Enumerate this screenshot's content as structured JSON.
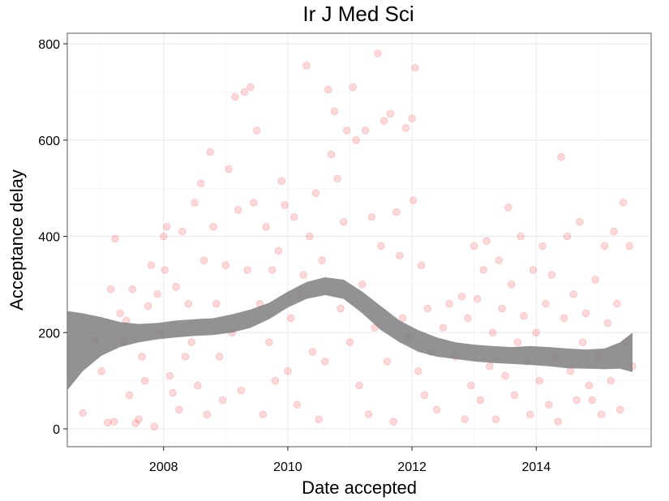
{
  "chart_data": {
    "type": "scatter",
    "title": "Ir J Med Sci",
    "xlabel": "Date accepted",
    "ylabel": "Acceptance delay",
    "xlim": [
      2006.45,
      2015.85
    ],
    "ylim": [
      -37,
      822
    ],
    "x_ticks": [
      2008,
      2010,
      2012,
      2014
    ],
    "y_ticks": [
      0,
      200,
      400,
      600,
      800
    ],
    "grid": true,
    "point_color": "#ff0000",
    "point_alpha": 0.15,
    "band_color": "#7f7f7f",
    "band_alpha": 0.85,
    "series": [
      {
        "values": [
          [
            2006.7,
            33
          ],
          [
            2006.9,
            185
          ],
          [
            2007.0,
            120
          ],
          [
            2007.1,
            13
          ],
          [
            2007.15,
            290
          ],
          [
            2007.2,
            15
          ],
          [
            2007.22,
            395
          ],
          [
            2007.3,
            240
          ],
          [
            2007.35,
            182
          ],
          [
            2007.4,
            225
          ],
          [
            2007.45,
            70
          ],
          [
            2007.5,
            290
          ],
          [
            2007.55,
            12
          ],
          [
            2007.6,
            20
          ],
          [
            2007.65,
            150
          ],
          [
            2007.7,
            100
          ],
          [
            2007.75,
            255
          ],
          [
            2007.8,
            340
          ],
          [
            2007.85,
            5
          ],
          [
            2007.9,
            280
          ],
          [
            2007.95,
            200
          ],
          [
            2008.0,
            400
          ],
          [
            2008.02,
            330
          ],
          [
            2008.05,
            420
          ],
          [
            2008.1,
            110
          ],
          [
            2008.15,
            75
          ],
          [
            2008.2,
            295
          ],
          [
            2008.25,
            40
          ],
          [
            2008.3,
            410
          ],
          [
            2008.35,
            150
          ],
          [
            2008.4,
            260
          ],
          [
            2008.45,
            180
          ],
          [
            2008.5,
            470
          ],
          [
            2008.55,
            90
          ],
          [
            2008.6,
            510
          ],
          [
            2008.65,
            350
          ],
          [
            2008.7,
            30
          ],
          [
            2008.75,
            575
          ],
          [
            2008.8,
            420
          ],
          [
            2008.85,
            260
          ],
          [
            2008.9,
            150
          ],
          [
            2008.95,
            60
          ],
          [
            2009.0,
            340
          ],
          [
            2009.05,
            540
          ],
          [
            2009.1,
            200
          ],
          [
            2009.15,
            690
          ],
          [
            2009.2,
            455
          ],
          [
            2009.25,
            80
          ],
          [
            2009.3,
            700
          ],
          [
            2009.35,
            330
          ],
          [
            2009.4,
            710
          ],
          [
            2009.45,
            470
          ],
          [
            2009.5,
            620
          ],
          [
            2009.55,
            260
          ],
          [
            2009.6,
            30
          ],
          [
            2009.65,
            420
          ],
          [
            2009.7,
            180
          ],
          [
            2009.75,
            330
          ],
          [
            2009.8,
            100
          ],
          [
            2009.85,
            370
          ],
          [
            2009.9,
            515
          ],
          [
            2009.95,
            465
          ],
          [
            2010.0,
            120
          ],
          [
            2010.05,
            230
          ],
          [
            2010.1,
            440
          ],
          [
            2010.15,
            50
          ],
          [
            2010.2,
            280
          ],
          [
            2010.25,
            320
          ],
          [
            2010.3,
            755
          ],
          [
            2010.35,
            400
          ],
          [
            2010.4,
            160
          ],
          [
            2010.45,
            490
          ],
          [
            2010.5,
            20
          ],
          [
            2010.55,
            350
          ],
          [
            2010.6,
            140
          ],
          [
            2010.65,
            705
          ],
          [
            2010.7,
            570
          ],
          [
            2010.75,
            660
          ],
          [
            2010.8,
            520
          ],
          [
            2010.85,
            250
          ],
          [
            2010.9,
            430
          ],
          [
            2010.95,
            620
          ],
          [
            2011.0,
            180
          ],
          [
            2011.05,
            710
          ],
          [
            2011.1,
            600
          ],
          [
            2011.15,
            90
          ],
          [
            2011.2,
            300
          ],
          [
            2011.25,
            620
          ],
          [
            2011.3,
            30
          ],
          [
            2011.35,
            440
          ],
          [
            2011.4,
            210
          ],
          [
            2011.45,
            780
          ],
          [
            2011.5,
            380
          ],
          [
            2011.55,
            640
          ],
          [
            2011.6,
            140
          ],
          [
            2011.65,
            655
          ],
          [
            2011.7,
            15
          ],
          [
            2011.75,
            450
          ],
          [
            2011.8,
            360
          ],
          [
            2011.85,
            230
          ],
          [
            2011.9,
            625
          ],
          [
            2011.95,
            190
          ],
          [
            2012.0,
            645
          ],
          [
            2012.02,
            475
          ],
          [
            2012.05,
            750
          ],
          [
            2012.1,
            120
          ],
          [
            2012.15,
            340
          ],
          [
            2012.2,
            70
          ],
          [
            2012.25,
            250
          ],
          [
            2012.3,
            160
          ],
          [
            2012.4,
            40
          ],
          [
            2012.5,
            210
          ],
          [
            2012.6,
            260
          ],
          [
            2012.7,
            150
          ],
          [
            2012.8,
            275
          ],
          [
            2012.85,
            20
          ],
          [
            2012.9,
            230
          ],
          [
            2012.95,
            90
          ],
          [
            2013.0,
            380
          ],
          [
            2013.05,
            270
          ],
          [
            2013.1,
            60
          ],
          [
            2013.15,
            330
          ],
          [
            2013.2,
            390
          ],
          [
            2013.25,
            130
          ],
          [
            2013.3,
            200
          ],
          [
            2013.35,
            20
          ],
          [
            2013.4,
            350
          ],
          [
            2013.45,
            250
          ],
          [
            2013.5,
            110
          ],
          [
            2013.55,
            460
          ],
          [
            2013.6,
            300
          ],
          [
            2013.65,
            70
          ],
          [
            2013.7,
            180
          ],
          [
            2013.75,
            400
          ],
          [
            2013.8,
            235
          ],
          [
            2013.85,
            140
          ],
          [
            2013.9,
            30
          ],
          [
            2013.95,
            330
          ],
          [
            2014.0,
            200
          ],
          [
            2014.05,
            100
          ],
          [
            2014.1,
            380
          ],
          [
            2014.15,
            260
          ],
          [
            2014.2,
            50
          ],
          [
            2014.25,
            320
          ],
          [
            2014.3,
            150
          ],
          [
            2014.35,
            15
          ],
          [
            2014.4,
            565
          ],
          [
            2014.45,
            230
          ],
          [
            2014.5,
            400
          ],
          [
            2014.55,
            120
          ],
          [
            2014.6,
            280
          ],
          [
            2014.65,
            60
          ],
          [
            2014.7,
            430
          ],
          [
            2014.75,
            180
          ],
          [
            2014.8,
            240
          ],
          [
            2014.85,
            90
          ],
          [
            2014.9,
            60
          ],
          [
            2014.95,
            310
          ],
          [
            2015.0,
            150
          ],
          [
            2015.05,
            30
          ],
          [
            2015.1,
            380
          ],
          [
            2015.15,
            220
          ],
          [
            2015.2,
            100
          ],
          [
            2015.25,
            410
          ],
          [
            2015.3,
            260
          ],
          [
            2015.35,
            40
          ],
          [
            2015.4,
            470
          ],
          [
            2015.45,
            180
          ],
          [
            2015.5,
            380
          ],
          [
            2015.55,
            130
          ]
        ]
      }
    ],
    "smooth_band": {
      "x": [
        2006.45,
        2006.7,
        2007.0,
        2007.3,
        2007.6,
        2007.9,
        2008.2,
        2008.5,
        2008.8,
        2009.1,
        2009.4,
        2009.7,
        2010.0,
        2010.3,
        2010.6,
        2010.9,
        2011.2,
        2011.5,
        2011.8,
        2012.1,
        2012.4,
        2012.7,
        2013.0,
        2013.3,
        2013.6,
        2013.9,
        2014.2,
        2014.5,
        2014.8,
        2015.1,
        2015.35,
        2015.55
      ],
      "upper": [
        245,
        240,
        232,
        222,
        218,
        220,
        225,
        228,
        230,
        238,
        248,
        262,
        285,
        305,
        315,
        310,
        285,
        255,
        225,
        205,
        190,
        180,
        175,
        172,
        170,
        172,
        170,
        167,
        165,
        167,
        180,
        200
      ],
      "lower": [
        80,
        120,
        152,
        170,
        180,
        186,
        190,
        193,
        195,
        200,
        210,
        228,
        252,
        270,
        278,
        270,
        240,
        205,
        180,
        160,
        150,
        145,
        140,
        137,
        135,
        133,
        130,
        126,
        125,
        124,
        125,
        118
      ]
    }
  }
}
